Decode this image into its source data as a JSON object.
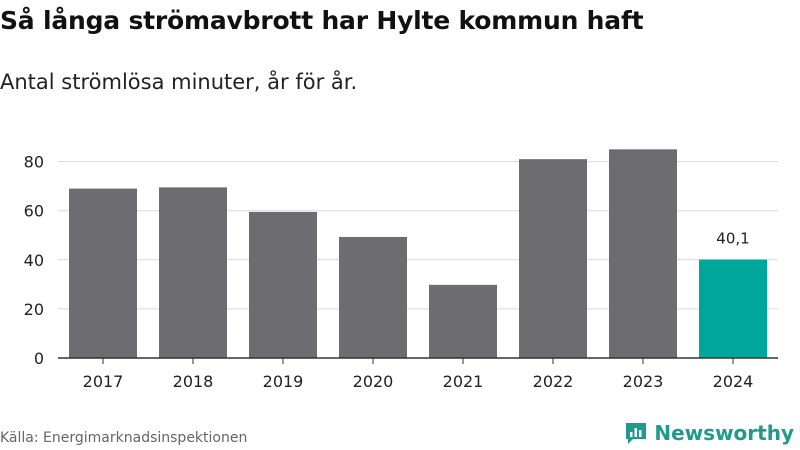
{
  "header": {
    "title": "Så långa strömavbrott har Hylte kommun haft",
    "subtitle": "Antal strömlösa minuter, år för år."
  },
  "footer": {
    "source": "Källa: Energimarknadsinspektionen",
    "brand": "Newsworthy",
    "brand_icon": "bar-chart-logo-icon"
  },
  "colors": {
    "bar": "#6d6c70",
    "highlight": "#00a699",
    "grid": "#d9d9d9",
    "axis": "#333333",
    "brand": "#1f9a8d"
  },
  "chart_data": {
    "type": "bar",
    "title": "Så långa strömavbrott har Hylte kommun haft",
    "subtitle": "Antal strömlösa minuter, år för år.",
    "xlabel": "",
    "ylabel": "",
    "categories": [
      "2017",
      "2018",
      "2019",
      "2020",
      "2021",
      "2022",
      "2023",
      "2024"
    ],
    "values": [
      69,
      69.5,
      59.5,
      49.3,
      29.8,
      81,
      85,
      40.1
    ],
    "highlight_index": 7,
    "data_labels": [
      {
        "index": 7,
        "text": "40,1"
      }
    ],
    "yticks": [
      0,
      20,
      40,
      60,
      80
    ],
    "ylim": [
      0,
      85
    ],
    "grid": true,
    "legend": "none"
  }
}
